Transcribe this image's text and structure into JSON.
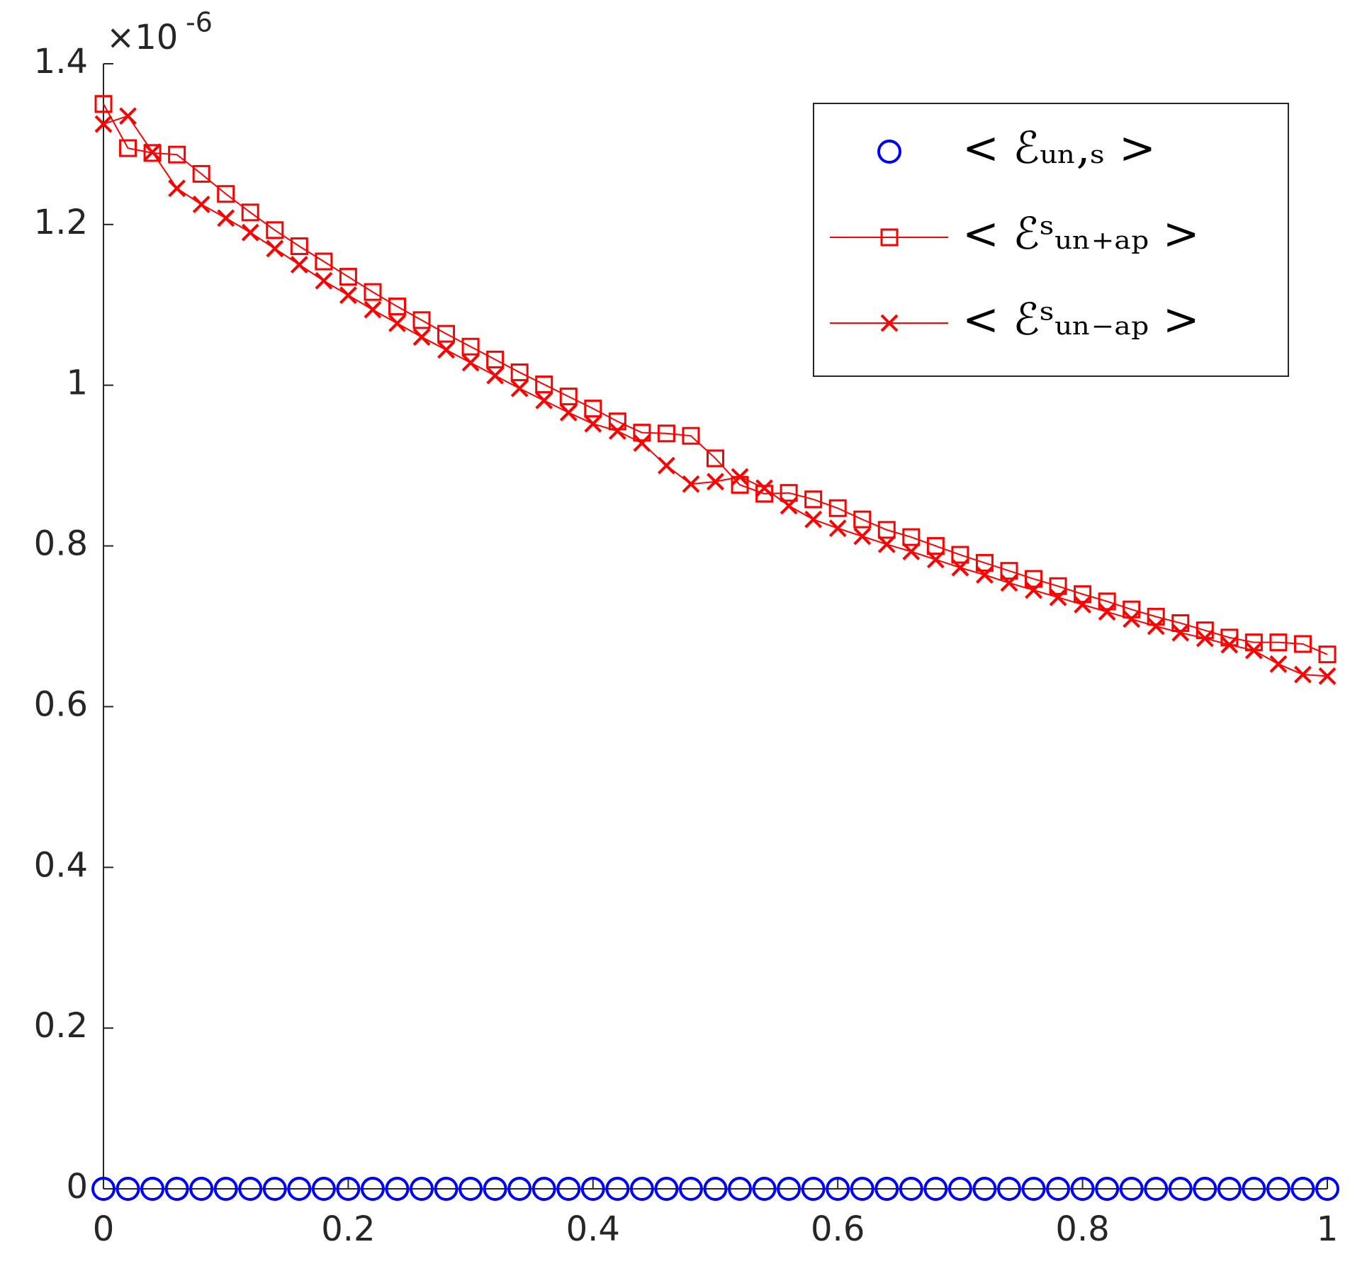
{
  "chart_data": {
    "type": "line",
    "y_multiplier": "×10",
    "y_exponent": "-6",
    "x": [
      0,
      0.02,
      0.04,
      0.06,
      0.08,
      0.1,
      0.12,
      0.14,
      0.16,
      0.18,
      0.2,
      0.22,
      0.24,
      0.26,
      0.28,
      0.3,
      0.32,
      0.34,
      0.36,
      0.38,
      0.4,
      0.42,
      0.44,
      0.46,
      0.48,
      0.5,
      0.52,
      0.54,
      0.56,
      0.58,
      0.6,
      0.62,
      0.64,
      0.66,
      0.68,
      0.7,
      0.72,
      0.74,
      0.76,
      0.78,
      0.8,
      0.82,
      0.84,
      0.86,
      0.88,
      0.9,
      0.92,
      0.94,
      0.96,
      0.98,
      1
    ],
    "series": [
      {
        "name": "< ℰᵤₙ,ₛ >",
        "color": "#0000ff",
        "marker": "o",
        "line": false,
        "values": [
          0,
          0,
          0,
          0,
          0,
          0,
          0,
          0,
          0,
          0,
          0,
          0,
          0,
          0,
          0,
          0,
          0,
          0,
          0,
          0,
          0,
          0,
          0,
          0,
          0,
          0,
          0,
          0,
          0,
          0,
          0,
          0,
          0,
          0,
          0,
          0,
          0,
          0,
          0,
          0,
          0,
          0,
          0,
          0,
          0,
          0,
          0,
          0,
          0,
          0,
          0
        ]
      },
      {
        "name": "< ℰˢᵤₙ₊ₐₚ >",
        "color": "#ff0000",
        "marker": "s",
        "line": true,
        "values": [
          1.35,
          1.295,
          1.289,
          1.287,
          1.263,
          1.238,
          1.215,
          1.193,
          1.173,
          1.154,
          1.135,
          1.116,
          1.098,
          1.081,
          1.064,
          1.048,
          1.032,
          1.016,
          1.001,
          0.986,
          0.971,
          0.955,
          0.941,
          0.94,
          0.937,
          0.909,
          0.876,
          0.865,
          0.866,
          0.858,
          0.847,
          0.833,
          0.82,
          0.811,
          0.8,
          0.789,
          0.779,
          0.769,
          0.759,
          0.75,
          0.74,
          0.731,
          0.721,
          0.712,
          0.704,
          0.695,
          0.686,
          0.68,
          0.68,
          0.678,
          0.665
        ]
      },
      {
        "name": "< ℰˢᵤₙ₋ₐₚ >",
        "color": "#ff0000",
        "marker": "x",
        "line": true,
        "values": [
          1.325,
          1.335,
          1.29,
          1.245,
          1.225,
          1.208,
          1.19,
          1.17,
          1.15,
          1.13,
          1.112,
          1.094,
          1.077,
          1.06,
          1.044,
          1.028,
          1.012,
          0.996,
          0.981,
          0.966,
          0.952,
          0.943,
          0.928,
          0.9,
          0.877,
          0.88,
          0.886,
          0.872,
          0.85,
          0.833,
          0.822,
          0.812,
          0.802,
          0.793,
          0.783,
          0.773,
          0.764,
          0.754,
          0.745,
          0.736,
          0.727,
          0.718,
          0.709,
          0.7,
          0.692,
          0.685,
          0.677,
          0.67,
          0.653,
          0.64,
          0.638
        ]
      }
    ],
    "xlim": [
      0,
      1
    ],
    "xticks": [
      0,
      0.2,
      0.4,
      0.6,
      0.8,
      1
    ],
    "ylim": [
      0,
      1.4
    ],
    "yticks": [
      0,
      0.2,
      0.4,
      0.6,
      0.8,
      1,
      1.2,
      1.4
    ],
    "grid": false,
    "legend": "northeast"
  }
}
